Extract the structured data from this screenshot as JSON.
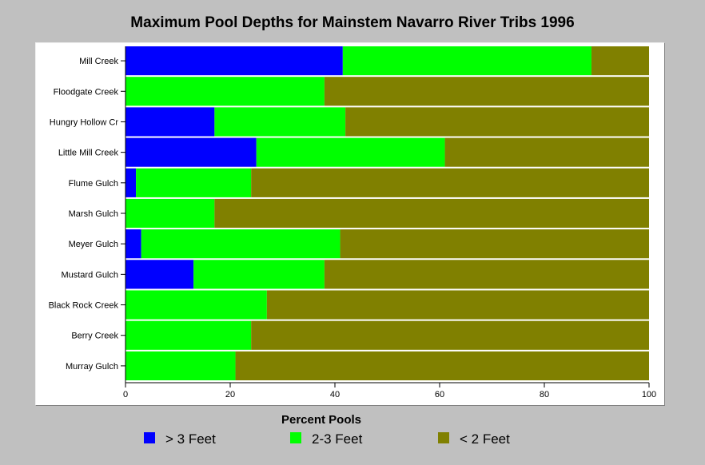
{
  "chart_data": {
    "type": "bar",
    "orientation": "horizontal",
    "stacked": true,
    "title": "Maximum Pool Depths for Mainstem Navarro River Tribs 1996",
    "xlabel": "Percent Pools",
    "ylabel": "",
    "xlim": [
      0,
      100
    ],
    "x_ticks": [
      "0",
      "20",
      "40",
      "60",
      "80",
      "100"
    ],
    "grid": false,
    "legend_position": "bottom",
    "categories": [
      "Mill Creek",
      "Floodgate Creek",
      "Hungry Hollow Cr",
      "Little Mill Creek",
      "Flume Gulch",
      "Marsh Gulch",
      "Meyer Gulch",
      "Mustard Gulch",
      "Black Rock Creek",
      "Berry Creek",
      "Murray Gulch"
    ],
    "series": [
      {
        "name": "> 3 Feet",
        "color": "#0000ff",
        "values": [
          41.5,
          0,
          17,
          25,
          2,
          0,
          3,
          13,
          0,
          0,
          0
        ]
      },
      {
        "name": "2-3 Feet",
        "color": "#00ff00",
        "values": [
          47.5,
          38,
          25,
          36,
          22,
          17,
          38,
          25,
          27,
          24,
          21
        ]
      },
      {
        "name": "< 2 Feet",
        "color": "#808000",
        "values": [
          11,
          62,
          58,
          39,
          76,
          83,
          59,
          62,
          73,
          76,
          79
        ]
      }
    ]
  }
}
